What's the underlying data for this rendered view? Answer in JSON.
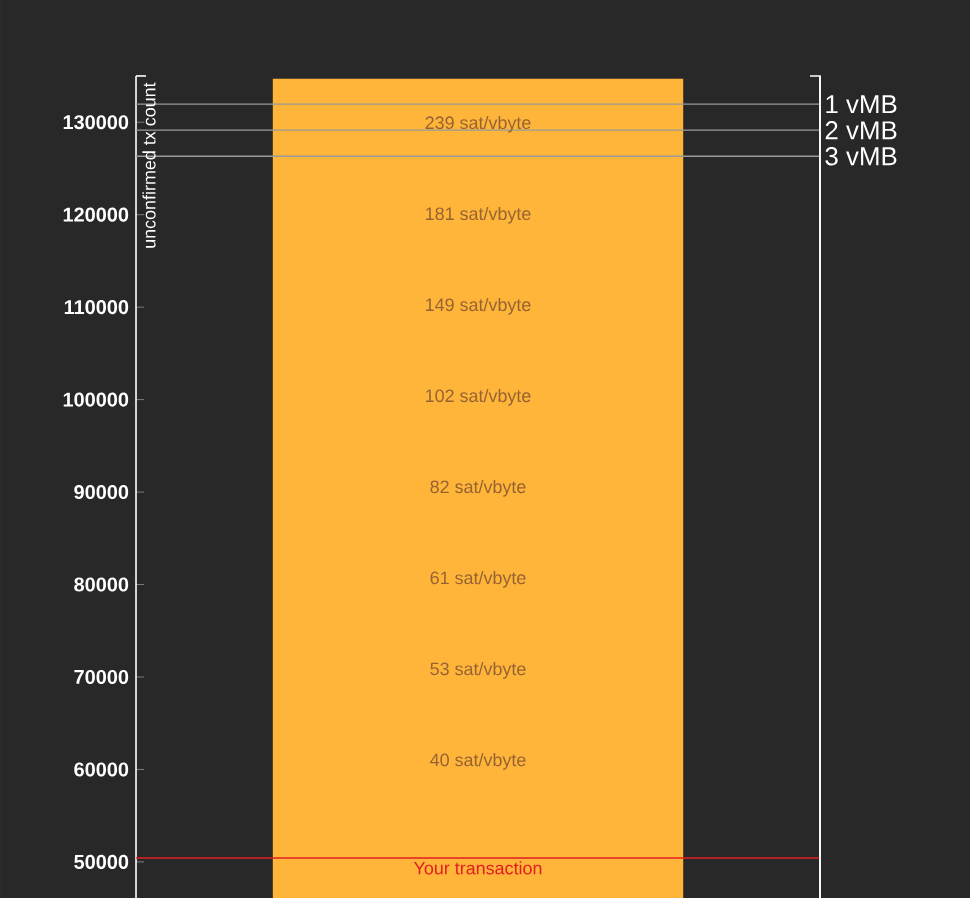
{
  "chart_data": {
    "type": "bar",
    "ylabel": "unconfirmed tx count",
    "categories": [
      null
    ],
    "values": [
      134700
    ],
    "color": "#ffb43a",
    "ylim": [
      46100,
      135000
    ],
    "yticks": [
      50000,
      60000,
      70000,
      80000,
      90000,
      100000,
      110000,
      120000,
      130000
    ],
    "ref_lines": [
      {
        "axis": "y",
        "value": 131950,
        "label": "1 vMB",
        "color": "#9a9a9a"
      },
      {
        "axis": "y",
        "value": 129140,
        "label": "2 vMB",
        "color": "#9a9a9a"
      },
      {
        "axis": "y",
        "value": 126320,
        "label": "3 vMB",
        "color": "#9a9a9a"
      },
      {
        "axis": "y",
        "value": 50430,
        "label": "Your transaction",
        "color": "#e02020"
      }
    ],
    "annotations": [
      "239 sat/vbyte",
      "181 sat/vbyte",
      "149 sat/vbyte",
      "102 sat/vbyte",
      "82 sat/vbyte",
      "61 sat/vbyte",
      "53 sat/vbyte",
      "40 sat/vbyte"
    ]
  }
}
